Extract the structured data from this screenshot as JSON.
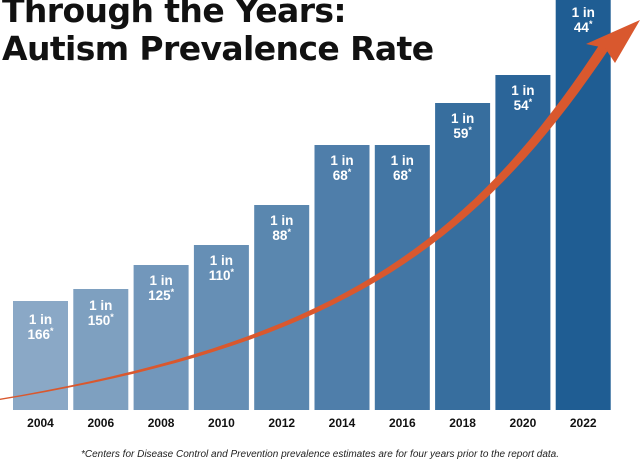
{
  "title": {
    "line1": "Through the Years:",
    "line2": "Autism Prevalence Rate"
  },
  "footnote": "*Centers for Disease Control and Prevention prevalence estimates are for four years prior to the report data.",
  "colors": {
    "bar_light": "#8aa8c6",
    "bar_dark": "#1f5d93",
    "arrow": "#d9582e",
    "label_text": "#ffffff",
    "axis_text": "#111111"
  },
  "chart_data": {
    "type": "bar",
    "title": "",
    "xlabel": "",
    "ylabel": "",
    "categories": [
      "2004",
      "2006",
      "2008",
      "2010",
      "2012",
      "2014",
      "2016",
      "2018",
      "2020",
      "2022"
    ],
    "values": [
      166,
      150,
      125,
      110,
      88,
      68,
      68,
      59,
      54,
      44
    ],
    "labels": [
      {
        "prefix": "1 in",
        "number": "166",
        "mark": "*"
      },
      {
        "prefix": "1 in",
        "number": "150",
        "mark": "*"
      },
      {
        "prefix": "1 in",
        "number": "125",
        "mark": "*"
      },
      {
        "prefix": "1 in",
        "number": "110",
        "mark": "*"
      },
      {
        "prefix": "1 in",
        "number": "88",
        "mark": "*"
      },
      {
        "prefix": "1 in",
        "number": "68",
        "mark": "*"
      },
      {
        "prefix": "1 in",
        "number": "68",
        "mark": "*"
      },
      {
        "prefix": "1 in",
        "number": "59",
        "mark": "*"
      },
      {
        "prefix": "1 in",
        "number": "54",
        "mark": "*"
      },
      {
        "prefix": "1 in",
        "number": "44",
        "mark": "*"
      }
    ],
    "grid": false,
    "legend": "none",
    "trend_arrow": true
  }
}
